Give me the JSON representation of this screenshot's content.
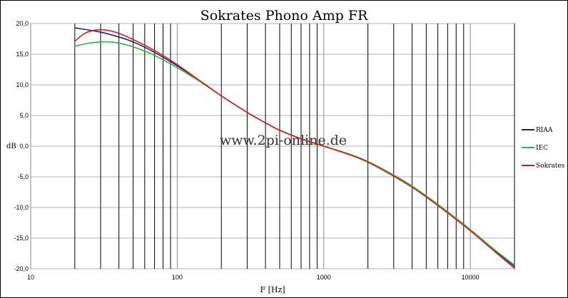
{
  "chart_data": {
    "type": "line",
    "title": "Sokrates Phono Amp FR",
    "xlabel": "F [Hz]",
    "ylabel": "dB",
    "xscale": "log",
    "xlim": [
      10,
      20000
    ],
    "ylim": [
      -20,
      20
    ],
    "grid": true,
    "legend": "right",
    "watermark": "www.2pi-online.de",
    "x_ticks": [
      {
        "value": 10,
        "label": "10"
      },
      {
        "value": 100,
        "label": "100"
      },
      {
        "value": 1000,
        "label": "1000"
      },
      {
        "value": 10000,
        "label": "10000"
      }
    ],
    "y_ticks": [
      {
        "value": 20,
        "label": "20,0"
      },
      {
        "value": 15,
        "label": "15,0"
      },
      {
        "value": 10,
        "label": "10,0"
      },
      {
        "value": 5,
        "label": "5,0"
      },
      {
        "value": 0,
        "label": "0,0"
      },
      {
        "value": -5,
        "label": "-5,0"
      },
      {
        "value": -10,
        "label": "-10,0"
      },
      {
        "value": -15,
        "label": "-15,0"
      },
      {
        "value": -20,
        "label": "-20,0"
      }
    ],
    "series": [
      {
        "name": "RIAA",
        "color": "#1a237e",
        "x": [
          20,
          30,
          40,
          50,
          70,
          100,
          150,
          200,
          300,
          400,
          500,
          700,
          1000,
          1500,
          2000,
          3000,
          4000,
          5000,
          7000,
          10000,
          15000,
          20000
        ],
        "y": [
          19.3,
          18.6,
          17.8,
          17.0,
          15.3,
          13.1,
          10.3,
          8.2,
          5.5,
          3.8,
          2.6,
          1.2,
          0.0,
          -1.4,
          -2.6,
          -4.8,
          -6.6,
          -8.2,
          -10.8,
          -13.7,
          -17.2,
          -19.6
        ]
      },
      {
        "name": "IEC",
        "color": "#2eb34a",
        "x": [
          20,
          25,
          30,
          35,
          40,
          50,
          70,
          100,
          150,
          200,
          300,
          400,
          500,
          700,
          1000,
          1500,
          2000,
          3000,
          4000,
          5000,
          7000,
          10000,
          15000,
          20000
        ],
        "y": [
          16.3,
          16.8,
          17.0,
          17.0,
          16.8,
          16.2,
          14.8,
          12.8,
          10.2,
          8.2,
          5.5,
          3.8,
          2.6,
          1.2,
          0.0,
          -1.3,
          -2.5,
          -4.7,
          -6.5,
          -8.1,
          -10.7,
          -13.6,
          -17.1,
          -19.4
        ]
      },
      {
        "name": "Sokrates",
        "color": "#e31a1c",
        "x": [
          20,
          23,
          26,
          30,
          35,
          40,
          50,
          70,
          100,
          150,
          200,
          300,
          400,
          500,
          700,
          1000,
          1500,
          2000,
          3000,
          4000,
          5000,
          7000,
          10000,
          15000,
          20000
        ],
        "y": [
          17.1,
          18.3,
          18.8,
          19.0,
          18.8,
          18.4,
          17.4,
          15.6,
          13.3,
          10.3,
          8.2,
          5.5,
          3.8,
          2.6,
          1.2,
          0.0,
          -1.4,
          -2.6,
          -4.9,
          -6.7,
          -8.3,
          -10.9,
          -13.8,
          -17.4,
          -19.9
        ]
      }
    ]
  }
}
